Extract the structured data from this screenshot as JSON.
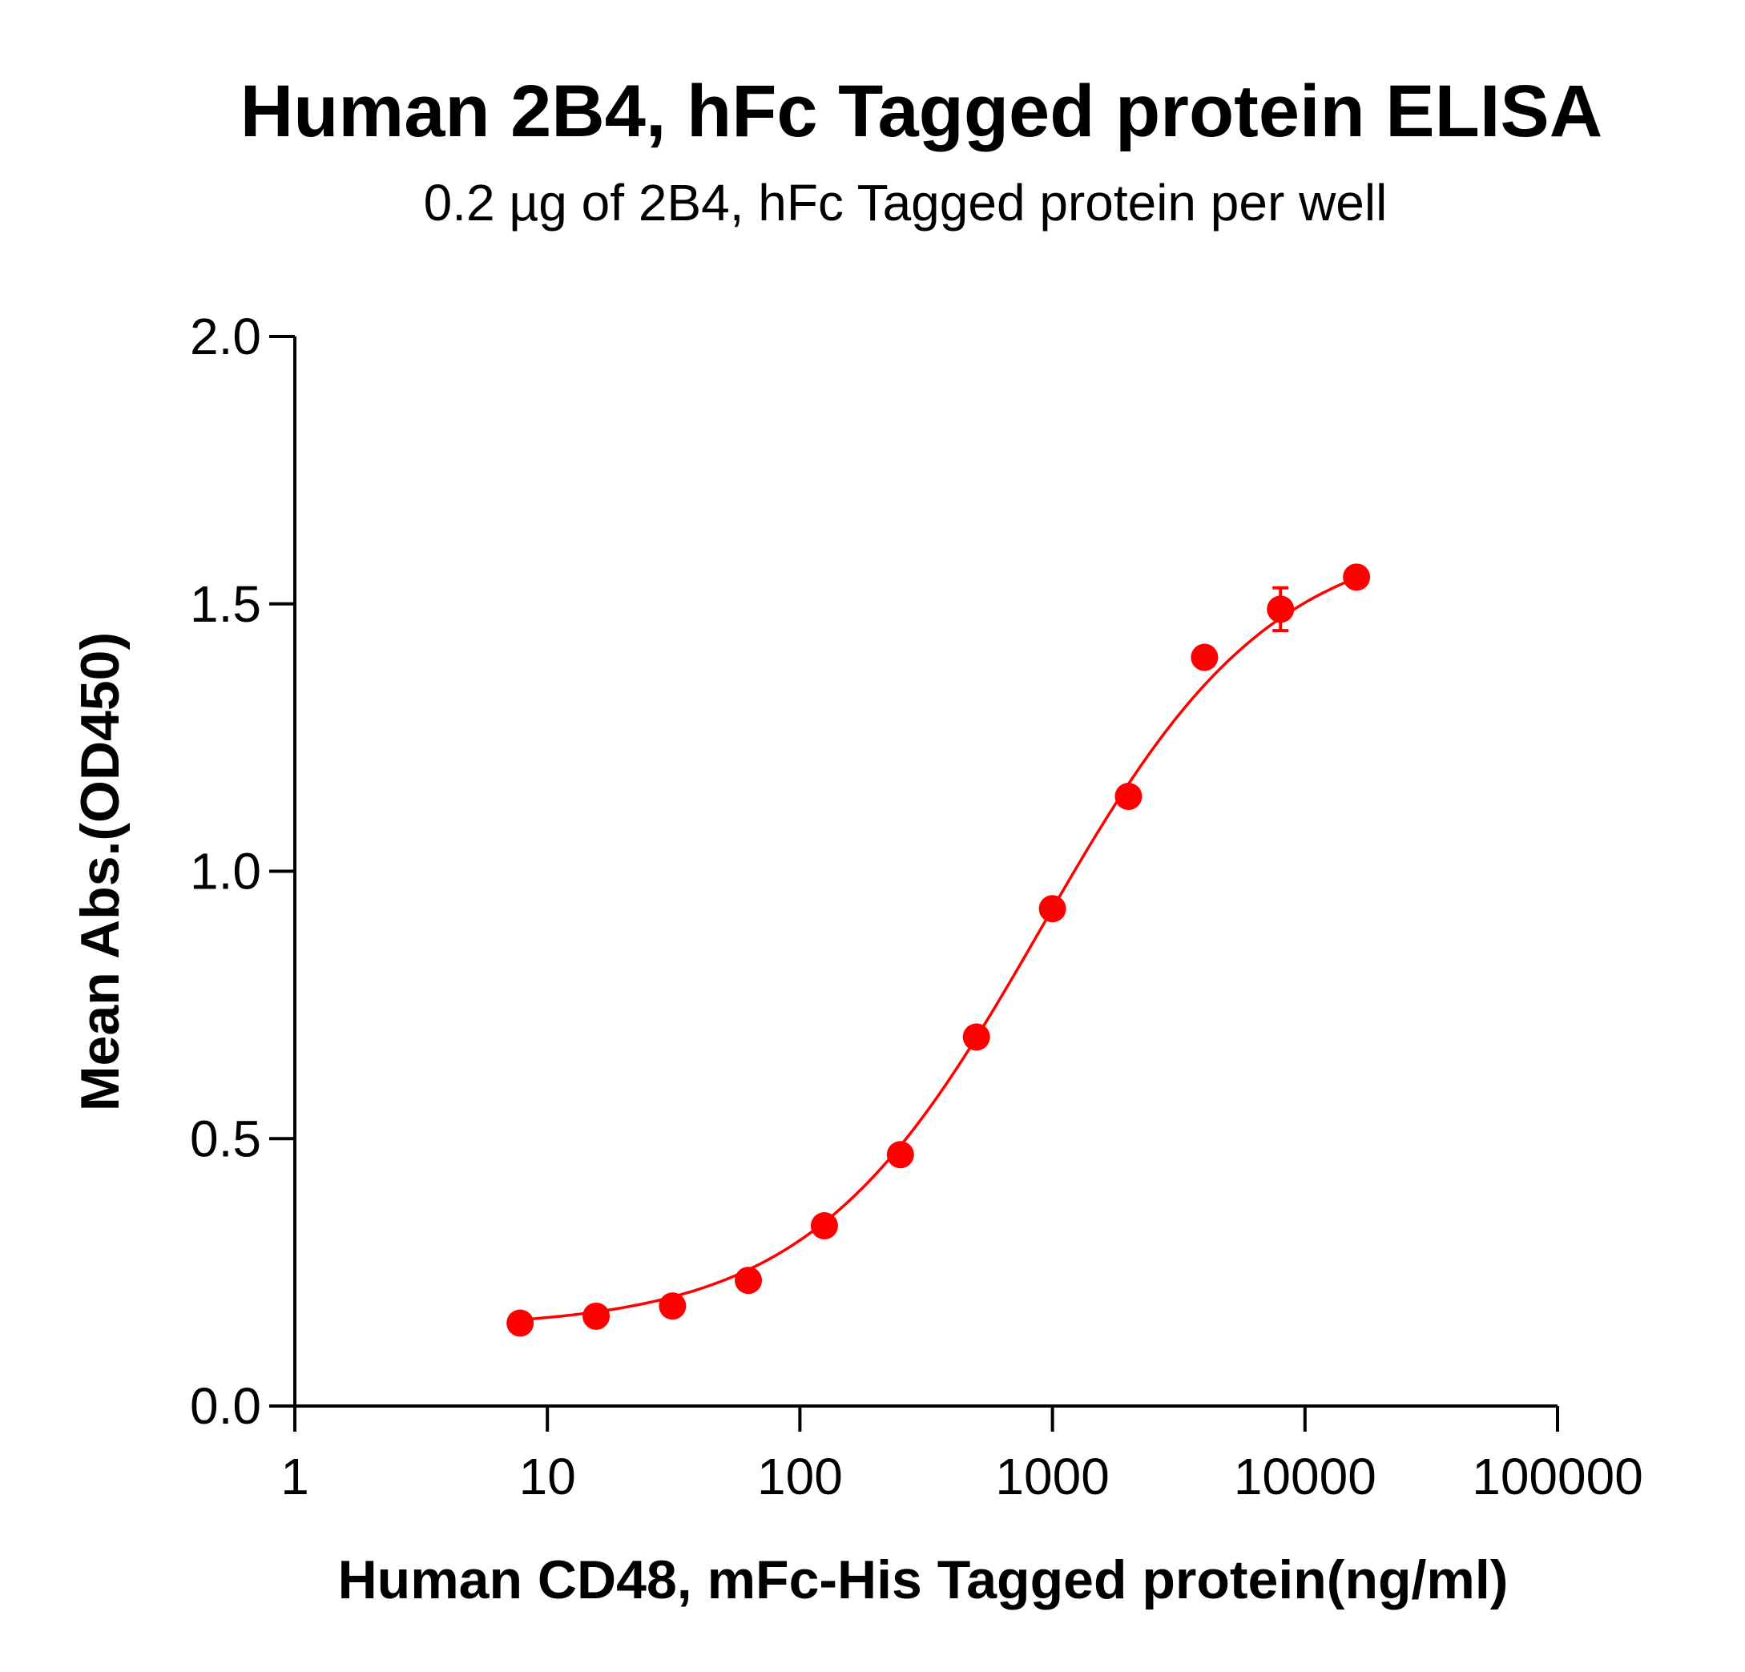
{
  "chart_data": {
    "type": "scatter",
    "title": "Human 2B4, hFc Tagged protein ELISA",
    "subtitle": "0.2 µg of 2B4, hFc Tagged protein per well",
    "xlabel": "Human CD48, mFc-His Tagged protein(ng/ml)",
    "ylabel": "Mean Abs.(OD450)",
    "x_scale": "log",
    "xlim": [
      1,
      100000
    ],
    "ylim": [
      0,
      2.0
    ],
    "x_ticks": [
      1,
      10,
      100,
      1000,
      10000,
      100000
    ],
    "x_tick_labels": [
      "1",
      "10",
      "100",
      "1000",
      "10000",
      "100000"
    ],
    "y_ticks": [
      0,
      0.5,
      1.0,
      1.5,
      2.0
    ],
    "y_tick_labels": [
      "0.0",
      "0.5",
      "1.0",
      "1.5",
      "2.0"
    ],
    "grid": false,
    "series": [
      {
        "color": "#ff0000",
        "x": [
          7.8,
          15.6,
          31.3,
          62.5,
          125,
          250,
          500,
          1000,
          2000,
          4000,
          8000,
          16000
        ],
        "y": [
          0.155,
          0.168,
          0.187,
          0.235,
          0.337,
          0.47,
          0.69,
          0.93,
          1.14,
          1.4,
          1.49,
          1.55
        ],
        "error": [
          0.0,
          0.0,
          0.0,
          0.0,
          0.0,
          0.0,
          0.0,
          0.0,
          0.0,
          0.0,
          0.04,
          0.0
        ],
        "fit": "4PL sigmoid"
      }
    ]
  }
}
